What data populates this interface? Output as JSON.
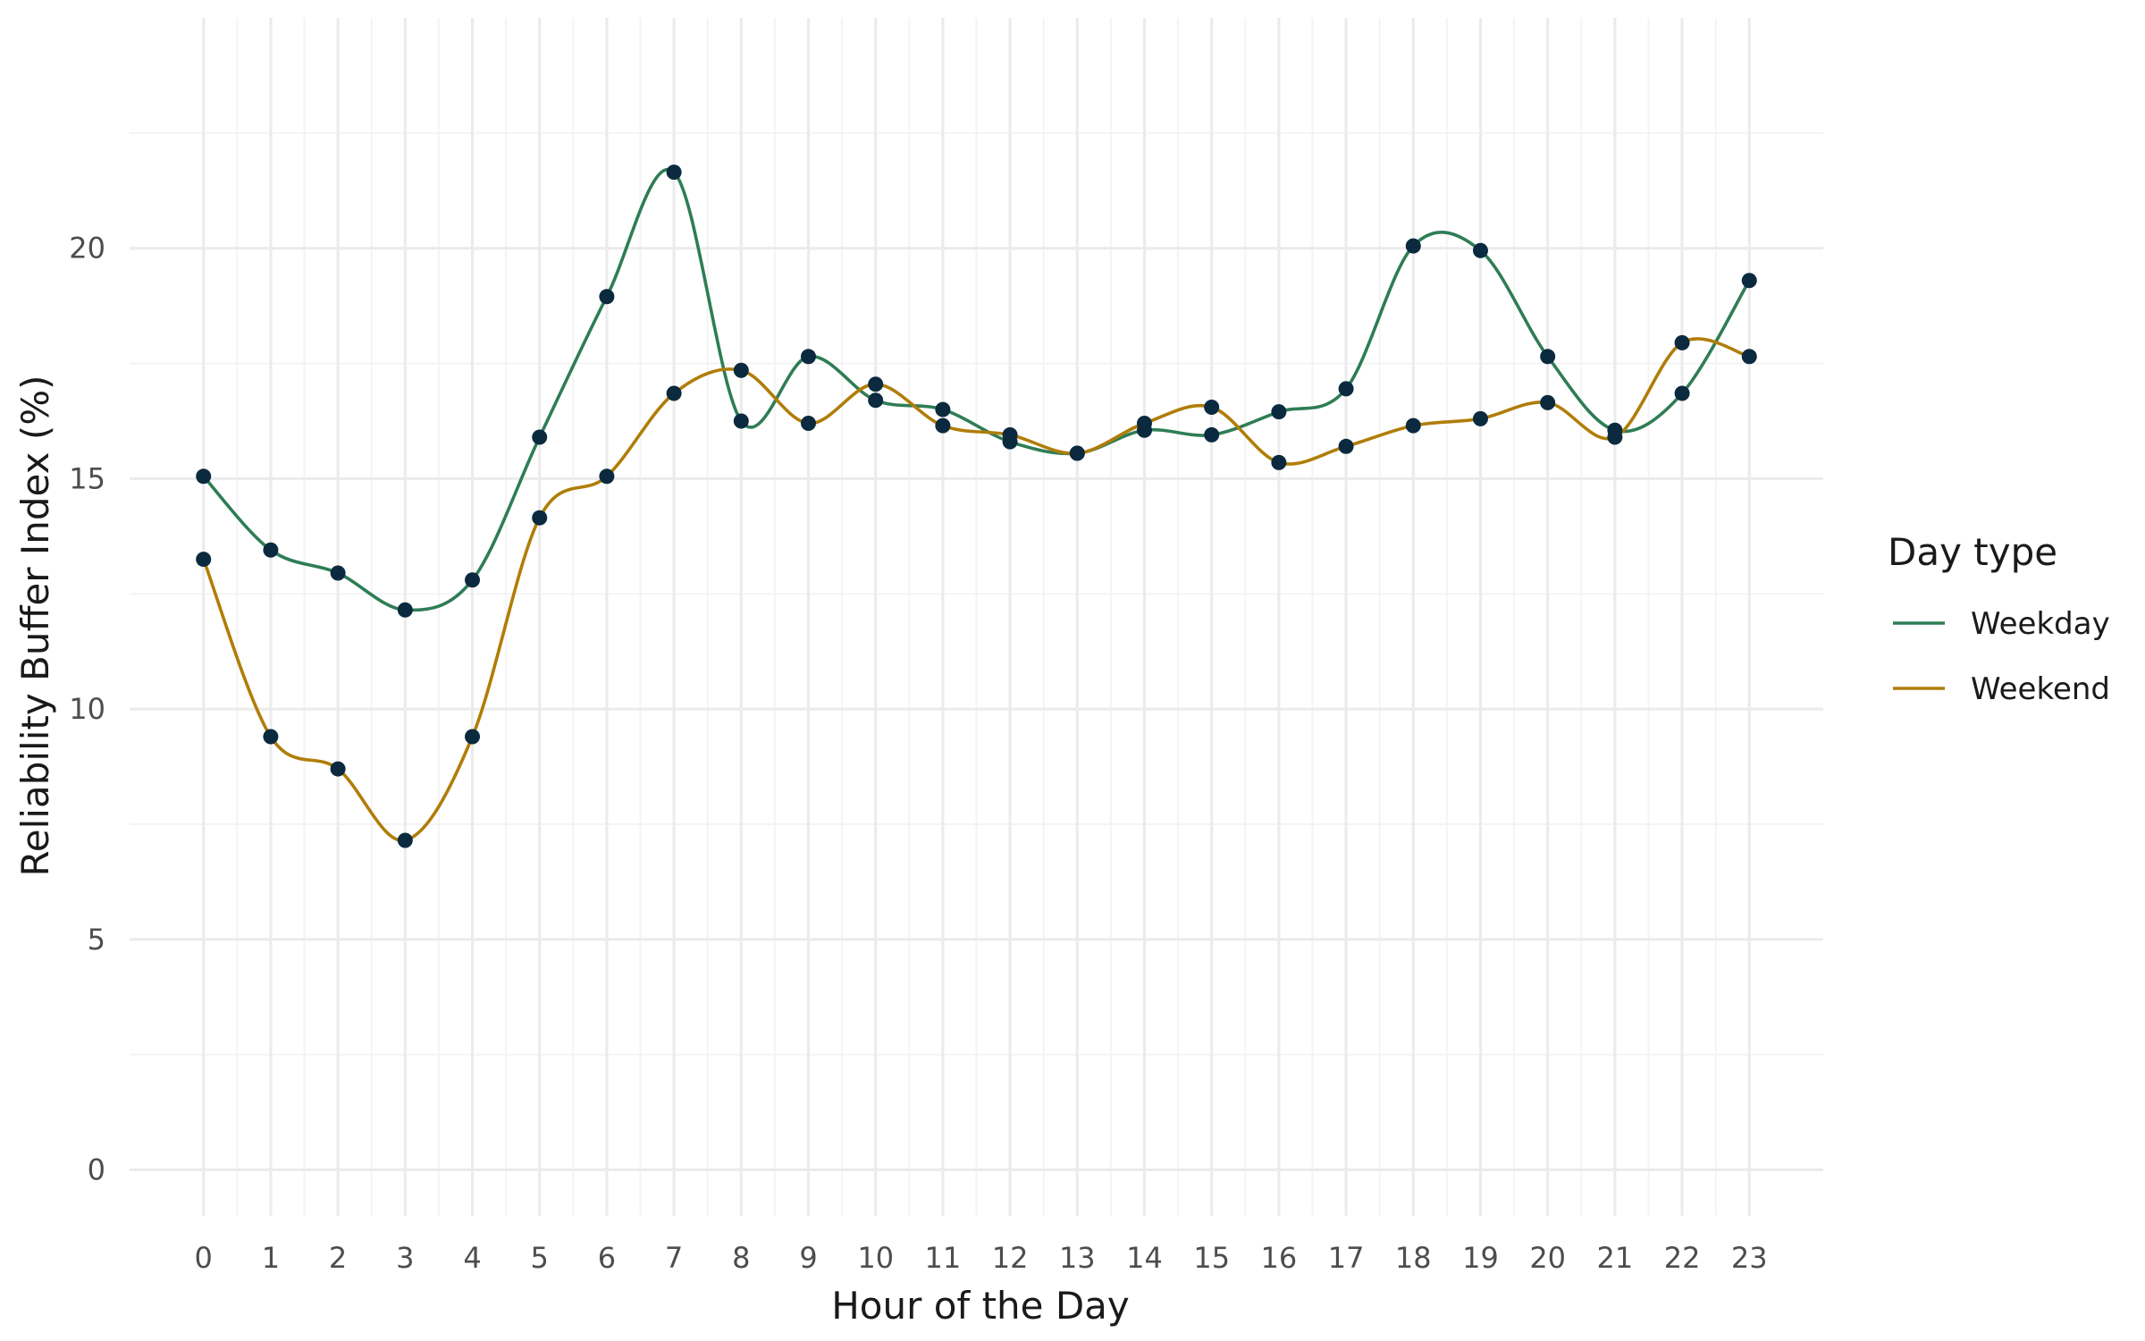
{
  "chart_data": {
    "type": "line",
    "title": "",
    "xlabel": "Hour of the Day",
    "ylabel": "Reliability Buffer Index (%)",
    "x": [
      0,
      1,
      2,
      3,
      4,
      5,
      6,
      7,
      8,
      9,
      10,
      11,
      12,
      13,
      14,
      15,
      16,
      17,
      18,
      19,
      20,
      21,
      22,
      23
    ],
    "xlim": [
      -1.1,
      24.1
    ],
    "ylim": [
      -1.0,
      25.0
    ],
    "y_ticks": [
      0,
      5,
      10,
      15,
      20
    ],
    "grid": true,
    "legend": {
      "title": "Day type",
      "position": "right"
    },
    "point_color": "#0b2a3f",
    "series": [
      {
        "name": "Weekday",
        "color": "#2e7d55",
        "values": [
          15.05,
          13.45,
          12.95,
          12.15,
          12.8,
          15.9,
          18.95,
          21.65,
          16.25,
          17.65,
          16.7,
          16.5,
          15.8,
          15.55,
          16.05,
          15.95,
          16.45,
          16.95,
          20.05,
          19.95,
          17.65,
          16.05,
          16.85,
          19.3
        ]
      },
      {
        "name": "Weekend",
        "color": "#b07d08",
        "values": [
          13.25,
          9.4,
          8.7,
          7.15,
          9.4,
          14.15,
          15.05,
          16.85,
          17.35,
          16.2,
          17.05,
          16.15,
          15.95,
          15.55,
          16.2,
          16.55,
          15.35,
          15.7,
          16.15,
          16.3,
          16.65,
          15.9,
          17.95,
          17.65
        ]
      }
    ]
  }
}
